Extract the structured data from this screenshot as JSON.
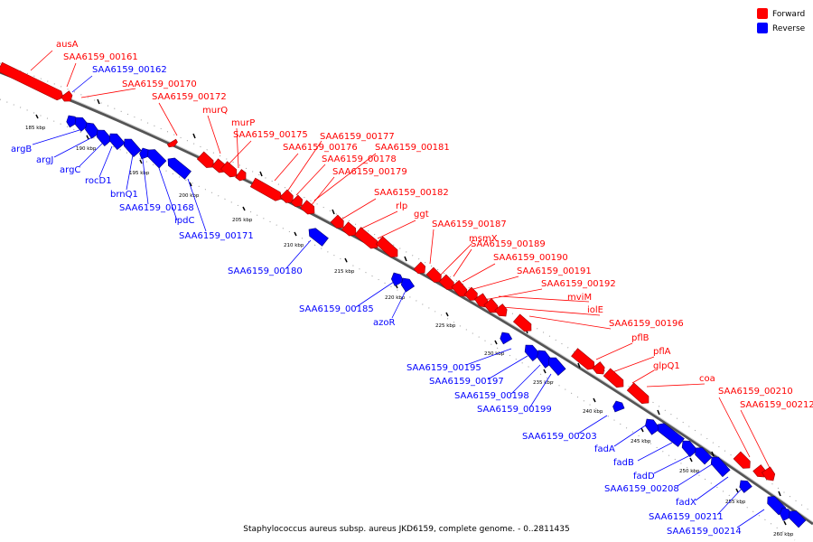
{
  "caption": "Staphylococcus aureus subsp. aureus JKD6159, complete genome. - 0..2811435",
  "legend": [
    {
      "label": "Forward",
      "color": "#ff0000"
    },
    {
      "label": "Reverse",
      "color": "#0000ff"
    }
  ],
  "colors": {
    "forward": "#ff0000",
    "reverse": "#0000ff",
    "backbone": "#777777"
  },
  "ticks": [
    "185 kbp",
    "190 kbp",
    "195 kbp",
    "200 kbp",
    "205 kbp",
    "210 kbp",
    "215 kbp",
    "220 kbp",
    "225 kbp",
    "230 kbp",
    "235 kbp",
    "240 kbp",
    "245 kbp",
    "250 kbp",
    "255 kbp",
    "260 kbp"
  ],
  "forward_labels": [
    "ausA",
    "SAA6159_00161",
    "SAA6159_00170",
    "SAA6159_00172",
    "murQ",
    "murP",
    "SAA6159_00175",
    "SAA6159_00176",
    "SAA6159_00177",
    "SAA6159_00178",
    "SAA6159_00181",
    "SAA6159_00179",
    "SAA6159_00182",
    "rlp",
    "ggt",
    "msmX",
    "SAA6159_00187",
    "SAA6159_00189",
    "SAA6159_00190",
    "SAA6159_00191",
    "SAA6159_00192",
    "mviM",
    "iolE",
    "SAA6159_00196",
    "pflB",
    "pflA",
    "glpQ1",
    "coa",
    "SAA6159_00210",
    "SAA6159_00212"
  ],
  "reverse_labels": [
    "SAA6159_00162",
    "argB",
    "argJ",
    "argC",
    "rocD1",
    "brnQ1",
    "SAA6159_00168",
    "ipdC",
    "SAA6159_00171",
    "SAA6159_00180",
    "SAA6159_00185",
    "azoR",
    "SAA6159_00195",
    "SAA6159_00197",
    "SAA6159_00198",
    "SAA6159_00199",
    "SAA6159_00203",
    "fadA",
    "fadB",
    "fadD",
    "SAA6159_00208",
    "fadX",
    "SAA6159_00211",
    "SAA6159_00214"
  ]
}
